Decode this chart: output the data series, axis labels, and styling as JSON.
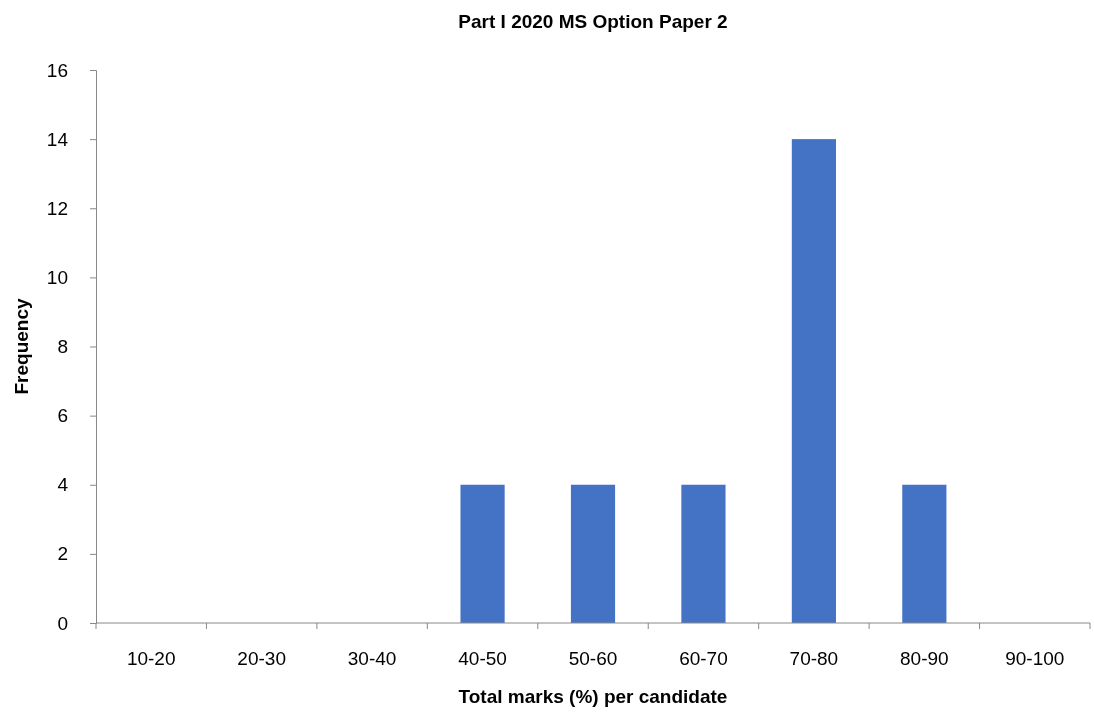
{
  "chart_data": {
    "type": "bar",
    "title": "Part I 2020 MS Option Paper 2",
    "xlabel": "Total marks (%) per candidate",
    "ylabel": "Frequency",
    "categories": [
      "10-20",
      "20-30",
      "30-40",
      "40-50",
      "50-60",
      "60-70",
      "70-80",
      "80-90",
      "90-100"
    ],
    "values": [
      0,
      0,
      0,
      4,
      4,
      4,
      14,
      4,
      0
    ],
    "color": "#4472c4",
    "ylim": [
      0,
      16
    ],
    "yticks": [
      0,
      2,
      4,
      6,
      8,
      10,
      12,
      14,
      16
    ],
    "grid": false
  }
}
